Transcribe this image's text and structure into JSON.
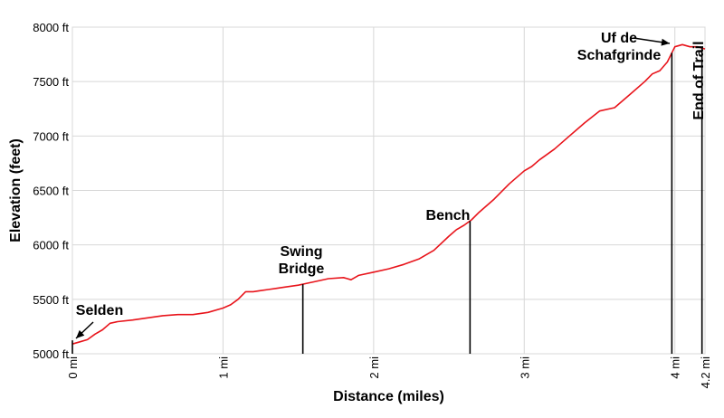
{
  "chart_data": {
    "type": "line",
    "xlabel": "Distance (miles)",
    "ylabel": "Elevation (feet)",
    "xlim": [
      0,
      4.2
    ],
    "ylim": [
      5000,
      8000
    ],
    "grid": true,
    "line_color": "#e8141b",
    "x_ticks": [
      {
        "value": 0,
        "label": "0 mi"
      },
      {
        "value": 1,
        "label": "1 mi"
      },
      {
        "value": 2,
        "label": "2 mi"
      },
      {
        "value": 3,
        "label": "3 mi"
      },
      {
        "value": 4,
        "label": "4 mi"
      },
      {
        "value": 4.2,
        "label": "4.2 mi"
      }
    ],
    "y_ticks": [
      {
        "value": 5000,
        "label": "5000 ft"
      },
      {
        "value": 5500,
        "label": "5500 ft"
      },
      {
        "value": 6000,
        "label": "6000 ft"
      },
      {
        "value": 6500,
        "label": "6500 ft"
      },
      {
        "value": 7000,
        "label": "7000 ft"
      },
      {
        "value": 7500,
        "label": "7500 ft"
      },
      {
        "value": 8000,
        "label": "8000 ft"
      }
    ],
    "series": [
      {
        "x": [
          0,
          0.05,
          0.1,
          0.15,
          0.2,
          0.25,
          0.3,
          0.4,
          0.5,
          0.6,
          0.7,
          0.8,
          0.9,
          1.0,
          1.05,
          1.1,
          1.15,
          1.2,
          1.25,
          1.3,
          1.35,
          1.4,
          1.5,
          1.55,
          1.6,
          1.7,
          1.8,
          1.85,
          1.9,
          2.0,
          2.1,
          2.2,
          2.3,
          2.4,
          2.5,
          2.55,
          2.6,
          2.65,
          2.7,
          2.8,
          2.9,
          3.0,
          3.05,
          3.1,
          3.2,
          3.3,
          3.4,
          3.5,
          3.6,
          3.7,
          3.8,
          3.85,
          3.9,
          3.95,
          4.0,
          4.05,
          4.1,
          4.15,
          4.2
        ],
        "y": [
          5090,
          5110,
          5130,
          5180,
          5220,
          5280,
          5295,
          5310,
          5330,
          5350,
          5360,
          5360,
          5380,
          5420,
          5450,
          5500,
          5570,
          5570,
          5580,
          5590,
          5600,
          5610,
          5630,
          5645,
          5660,
          5690,
          5700,
          5680,
          5720,
          5750,
          5780,
          5820,
          5870,
          5950,
          6080,
          6140,
          6180,
          6230,
          6300,
          6420,
          6560,
          6680,
          6720,
          6780,
          6880,
          7000,
          7120,
          7230,
          7260,
          7380,
          7500,
          7570,
          7600,
          7680,
          7820,
          7840,
          7820,
          7820,
          7800
        ]
      }
    ],
    "annotations": [
      {
        "lines": [
          "Selden"
        ],
        "x": 0.0
      },
      {
        "lines": [
          "Swing",
          "Bridge"
        ],
        "x": 1.53
      },
      {
        "lines": [
          "Bench"
        ],
        "x": 2.64
      },
      {
        "lines": [
          "Uf de",
          "Schafgrinde"
        ],
        "x": 3.98
      },
      {
        "lines": [
          "End of Trail"
        ],
        "x": 4.18
      }
    ]
  }
}
